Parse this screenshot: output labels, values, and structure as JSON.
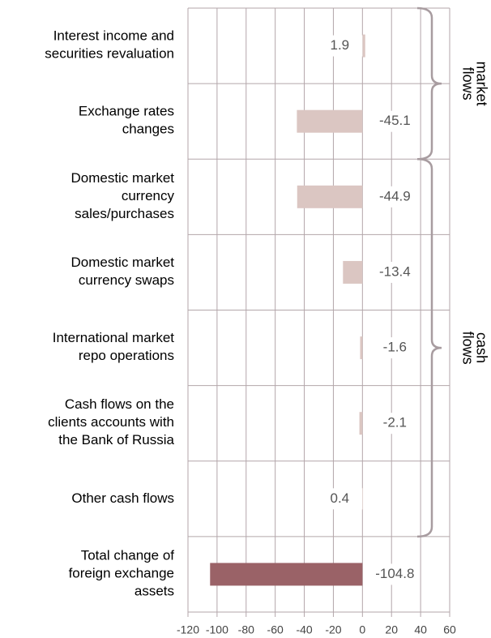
{
  "chart_data": {
    "type": "bar",
    "orientation": "horizontal",
    "categories": [
      "Interest income and\nsecurities revaluation",
      "Exchange rates\nchanges",
      "Domestic market\ncurrency\nsales/purchases",
      "Domestic market\ncurrency swaps",
      "International market\nrepo operations",
      "Cash flows on the\nclients accounts with\nthe Bank of Russia",
      "Other cash flows",
      "Total change of\nforeign exchange\nassets"
    ],
    "values": [
      1.9,
      -45.1,
      -44.9,
      -13.4,
      -1.6,
      -2.1,
      0.4,
      -104.8
    ],
    "colors": [
      "#dbc6c2",
      "#dbc6c2",
      "#dbc6c2",
      "#dbc6c2",
      "#dbc6c2",
      "#dbc6c2",
      "#dbc6c2",
      "#9a6267"
    ],
    "xlim": [
      -120,
      60
    ],
    "xticks": [
      -120,
      -100,
      -80,
      -60,
      -40,
      -20,
      0,
      20,
      40,
      60
    ],
    "grid": true,
    "annotations": [
      {
        "text": "market\nflows",
        "from": 0,
        "to": 1
      },
      {
        "text": "cash\nflows",
        "from": 2,
        "to": 6
      }
    ]
  }
}
